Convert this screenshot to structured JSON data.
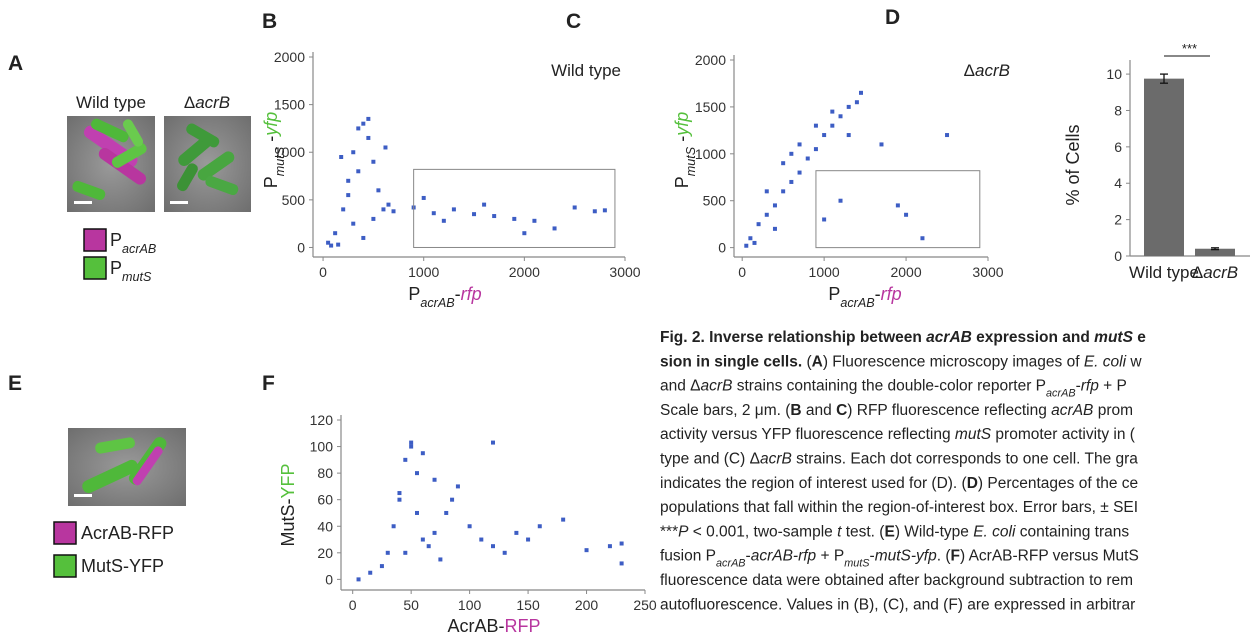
{
  "panel_a": {
    "label": "A",
    "titles": [
      [
        {
          "text": "Wild type"
        }
      ],
      [
        {
          "text": "Δ"
        },
        {
          "text": "acrB",
          "style": "italic"
        }
      ]
    ],
    "legend": [
      {
        "color": "#b8369f",
        "label": [
          {
            "text": "P"
          },
          {
            "text": "acrAB",
            "style": "sub italic"
          }
        ]
      },
      {
        "color": "#55c03c",
        "label": [
          {
            "text": "P"
          },
          {
            "text": "mutS",
            "style": "sub italic"
          }
        ]
      }
    ]
  },
  "panel_e": {
    "label": "E",
    "legend": [
      {
        "color": "#b8369f",
        "label": [
          {
            "text": "AcrAB-RFP"
          }
        ]
      },
      {
        "color": "#55c03c",
        "label": [
          {
            "text": "MutS-YFP"
          }
        ]
      }
    ]
  },
  "chart_data": [
    {
      "type": "scatter",
      "panel": "B",
      "annotation": [
        {
          "text": "Wild type"
        }
      ],
      "x_label": [
        {
          "text": "P"
        },
        {
          "text": "acrAB",
          "style": "sub italic"
        },
        {
          "text": "-"
        },
        {
          "text": "rfp",
          "style": "italic",
          "color": "#b8369f"
        }
      ],
      "y_label": [
        {
          "text": "P"
        },
        {
          "text": "mutS",
          "style": "sub italic"
        },
        {
          "text": " -"
        },
        {
          "text": "yfp",
          "style": "italic",
          "color": "#55c03c"
        }
      ],
      "color": "#3d5dc4",
      "x": [
        50,
        120,
        200,
        250,
        300,
        350,
        400,
        450,
        500,
        550,
        600,
        650,
        150,
        300,
        450,
        350,
        250,
        700,
        900,
        1100,
        1300,
        1500,
        1700,
        1900,
        2100,
        2300,
        2500,
        2700,
        2800,
        1000,
        1200,
        1600,
        2000,
        400,
        500,
        80,
        180,
        620
      ],
      "y": [
        50,
        150,
        400,
        700,
        1000,
        1250,
        1300,
        1150,
        900,
        600,
        400,
        450,
        30,
        250,
        1350,
        800,
        550,
        380,
        420,
        360,
        400,
        350,
        330,
        300,
        280,
        200,
        420,
        380,
        390,
        520,
        280,
        450,
        150,
        100,
        300,
        20,
        950,
        1050
      ],
      "region": {
        "x": [
          900,
          2900
        ],
        "y": [
          0,
          820
        ]
      },
      "xlim": [
        -100,
        3000
      ],
      "ylim": [
        -100,
        2000
      ],
      "xticks": [
        0,
        1000,
        2000,
        3000
      ],
      "yticks": [
        0,
        500,
        1000,
        1500,
        2000
      ]
    },
    {
      "type": "scatter",
      "panel": "C",
      "annotation": [
        {
          "text": "Δ"
        },
        {
          "text": "acrB",
          "style": "italic"
        }
      ],
      "x_label": [
        {
          "text": "P"
        },
        {
          "text": "acrAB",
          "style": "sub italic"
        },
        {
          "text": "-"
        },
        {
          "text": "rfp",
          "style": "italic",
          "color": "#b8369f"
        }
      ],
      "y_label": [
        {
          "text": "P"
        },
        {
          "text": "mutS",
          "style": "sub italic"
        },
        {
          "text": " -"
        },
        {
          "text": "yfp",
          "style": "italic",
          "color": "#55c03c"
        }
      ],
      "color": "#3d5dc4",
      "x": [
        50,
        100,
        200,
        300,
        400,
        500,
        600,
        700,
        800,
        900,
        1000,
        1100,
        1200,
        1300,
        1400,
        1450,
        300,
        500,
        700,
        900,
        1100,
        1300,
        1700,
        1900,
        2000,
        2200,
        2500,
        1000,
        1200,
        400,
        150,
        600
      ],
      "y": [
        20,
        100,
        250,
        350,
        450,
        600,
        700,
        800,
        950,
        1050,
        1200,
        1300,
        1400,
        1500,
        1550,
        1650,
        600,
        900,
        1100,
        1300,
        1450,
        1200,
        1100,
        450,
        350,
        100,
        1200,
        300,
        500,
        200,
        50,
        1000
      ],
      "region": {
        "x": [
          900,
          2900
        ],
        "y": [
          0,
          820
        ]
      },
      "xlim": [
        -100,
        3000
      ],
      "ylim": [
        -100,
        2000
      ],
      "xticks": [
        0,
        1000,
        2000,
        3000
      ],
      "yticks": [
        0,
        500,
        1000,
        1500,
        2000
      ]
    },
    {
      "type": "bar",
      "panel": "D",
      "y_label": [
        {
          "text": "% of Cells"
        }
      ],
      "categories": [
        [
          {
            "text": "Wild type"
          }
        ],
        [
          {
            "text": "Δ"
          },
          {
            "text": "acrB",
            "style": "italic"
          }
        ]
      ],
      "values": [
        9.75,
        0.4
      ],
      "errors": [
        0.25,
        0.05
      ],
      "color": "#6b6b6b",
      "significance": "***",
      "ylim": [
        0,
        10.5
      ],
      "yticks": [
        0,
        2,
        4,
        6,
        8,
        10
      ]
    },
    {
      "type": "scatter",
      "panel": "F",
      "x_label": [
        {
          "text": "AcrAB-"
        },
        {
          "text": "RFP",
          "color": "#b8369f"
        }
      ],
      "y_label": [
        {
          "text": "MutS-"
        },
        {
          "text": "YFP",
          "color": "#55c03c"
        }
      ],
      "color": "#3d5dc4",
      "x": [
        5,
        15,
        25,
        30,
        35,
        40,
        45,
        50,
        55,
        60,
        65,
        70,
        80,
        90,
        100,
        110,
        120,
        130,
        140,
        150,
        160,
        180,
        200,
        220,
        230,
        230,
        50,
        60,
        70,
        40,
        55,
        75,
        85,
        45,
        120
      ],
      "y": [
        0,
        5,
        10,
        20,
        40,
        60,
        90,
        100,
        80,
        30,
        25,
        35,
        50,
        70,
        40,
        30,
        25,
        20,
        35,
        30,
        40,
        45,
        22,
        25,
        27,
        12,
        103,
        95,
        75,
        65,
        50,
        15,
        60,
        20,
        103
      ],
      "xlim": [
        -10,
        250
      ],
      "ylim": [
        -8,
        120
      ],
      "xticks": [
        0,
        50,
        100,
        150,
        200,
        250
      ],
      "yticks": [
        0,
        20,
        40,
        60,
        80,
        100,
        120
      ]
    }
  ],
  "caption": [
    [
      {
        "text": "Fig. 2. Inverse relationship between ",
        "style": "bold"
      },
      {
        "text": "acrAB",
        "style": "bold italic"
      },
      {
        "text": " expression and ",
        "style": "bold"
      },
      {
        "text": "mutS",
        "style": "bold italic"
      },
      {
        "text": " e",
        "style": "bold"
      }
    ],
    [
      {
        "text": "sion in single cells.",
        "style": "bold"
      },
      {
        "text": " ("
      },
      {
        "text": "A",
        "style": "bold"
      },
      {
        "text": ") Fluorescence microscopy images of "
      },
      {
        "text": "E. coli",
        "style": "italic"
      },
      {
        "text": " w"
      }
    ],
    [
      {
        "text": "and Δ"
      },
      {
        "text": "acrB",
        "style": "italic"
      },
      {
        "text": " strains containing the double-color reporter P"
      },
      {
        "text": "acrAB",
        "style": "sub italic"
      },
      {
        "text": "-"
      },
      {
        "text": "rfp",
        "style": "italic"
      },
      {
        "text": " + P"
      }
    ],
    [
      {
        "text": "Scale bars, 2 μm. ("
      },
      {
        "text": "B",
        "style": "bold"
      },
      {
        "text": " and "
      },
      {
        "text": "C",
        "style": "bold"
      },
      {
        "text": ") RFP fluorescence reflecting "
      },
      {
        "text": "acrAB",
        "style": "italic"
      },
      {
        "text": " prom"
      }
    ],
    [
      {
        "text": "activity versus YFP fluorescence reflecting "
      },
      {
        "text": "mutS",
        "style": "italic"
      },
      {
        "text": " promoter activity in ("
      }
    ],
    [
      {
        "text": "type and (C) Δ"
      },
      {
        "text": "acrB",
        "style": "italic"
      },
      {
        "text": " strains. Each dot corresponds to one cell. The gra"
      }
    ],
    [
      {
        "text": "indicates the region of interest used for (D). ("
      },
      {
        "text": "D",
        "style": "bold"
      },
      {
        "text": ") Percentages of the ce"
      }
    ],
    [
      {
        "text": "populations that fall within the region-of-interest box. Error bars, ± SEI"
      }
    ],
    [
      {
        "text": "***"
      },
      {
        "text": "P",
        "style": "italic"
      },
      {
        "text": " < 0.001, two-sample "
      },
      {
        "text": "t",
        "style": "italic"
      },
      {
        "text": " test. ("
      },
      {
        "text": "E",
        "style": "bold"
      },
      {
        "text": ") Wild-type "
      },
      {
        "text": "E. coli",
        "style": "italic"
      },
      {
        "text": " containing trans"
      }
    ],
    [
      {
        "text": "fusion P"
      },
      {
        "text": "acrAB",
        "style": "sub italic"
      },
      {
        "text": "-"
      },
      {
        "text": "acrAB-rfp",
        "style": "italic"
      },
      {
        "text": " + P"
      },
      {
        "text": "mutS",
        "style": "sub italic"
      },
      {
        "text": "-"
      },
      {
        "text": "mutS-yfp",
        "style": "italic"
      },
      {
        "text": ". ("
      },
      {
        "text": "F",
        "style": "bold"
      },
      {
        "text": ") AcrAB-RFP versus MutS"
      }
    ],
    [
      {
        "text": "fluorescence data were obtained after background subtraction to rem"
      }
    ],
    [
      {
        "text": "autofluorescence. Values in (B), (C), and (F) are expressed in arbitrar"
      }
    ]
  ]
}
